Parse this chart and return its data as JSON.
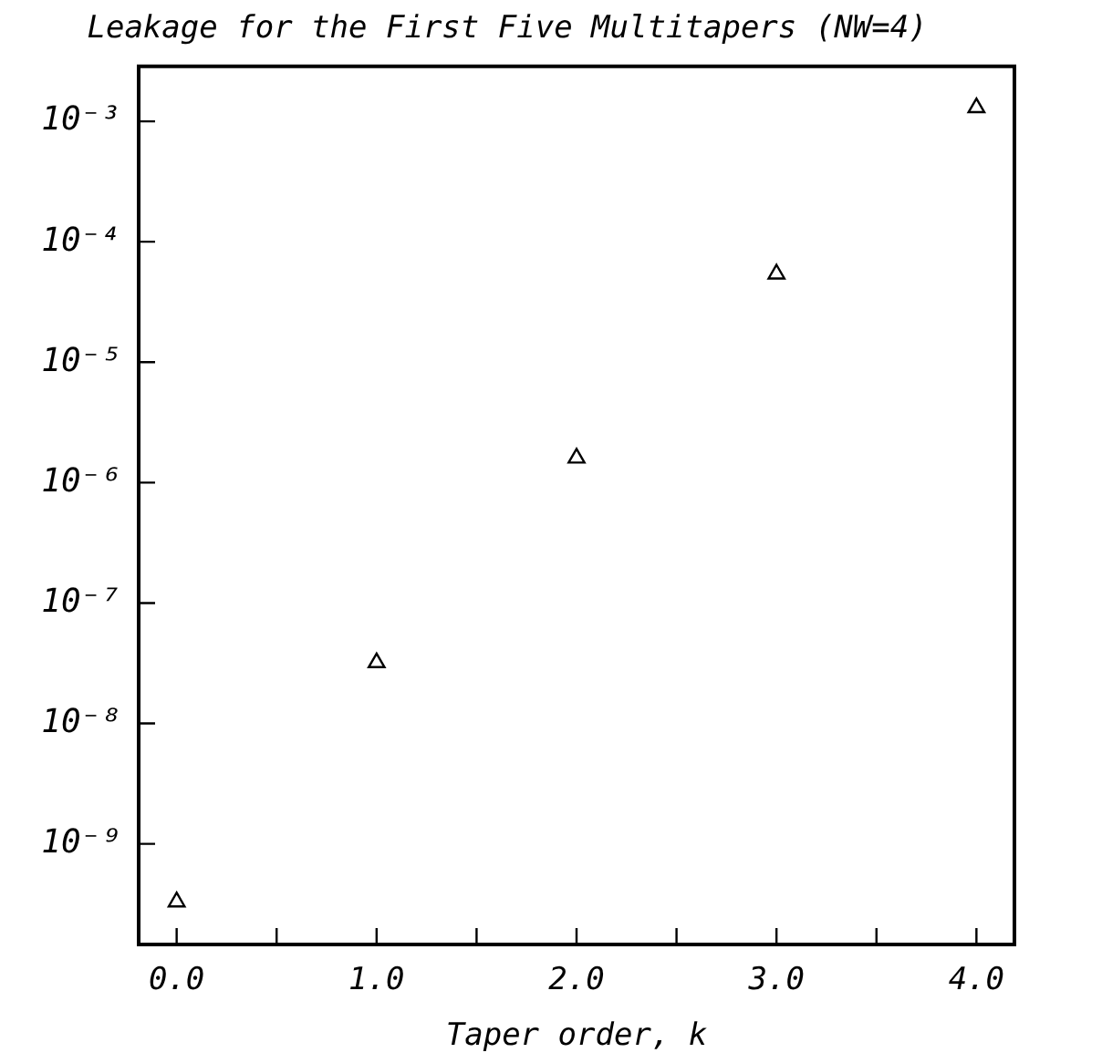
{
  "chart_data": {
    "type": "scatter",
    "title": "Leakage for the First Five Multitapers (NW=4)",
    "xlabel": "Taper order, k",
    "x": [
      0,
      1,
      2,
      3,
      4
    ],
    "series": [
      {
        "color": "#000000",
        "values": [
          3.3e-10,
          3.2e-08,
          1.6e-06,
          5.4e-05,
          0.0013
        ]
      }
    ],
    "log": "y",
    "marker": "triangle",
    "grid": false,
    "legend": false,
    "xlim": [
      -0.19,
      4.19
    ],
    "xticks": [
      {
        "value": 0,
        "label": "0.0"
      },
      {
        "value": 0.5,
        "label": null
      },
      {
        "value": 1,
        "label": "1.0"
      },
      {
        "value": 1.5,
        "label": null
      },
      {
        "value": 2,
        "label": "2.0"
      },
      {
        "value": 2.5,
        "label": null
      },
      {
        "value": 3,
        "label": "3.0"
      },
      {
        "value": 3.5,
        "label": null
      },
      {
        "value": 4,
        "label": "4.0"
      }
    ],
    "ylim": [
      1.46e-10,
      0.00286
    ],
    "yticks": [
      {
        "value": 1e-09,
        "label": "10⁻⁹"
      },
      {
        "value": 1e-08,
        "label": "10⁻⁸"
      },
      {
        "value": 1e-07,
        "label": "10⁻⁷"
      },
      {
        "value": 1e-06,
        "label": "10⁻⁶"
      },
      {
        "value": 1e-05,
        "label": "10⁻⁵"
      },
      {
        "value": 0.0001,
        "label": "10⁻⁴"
      },
      {
        "value": 0.001,
        "label": "10⁻³"
      }
    ]
  }
}
